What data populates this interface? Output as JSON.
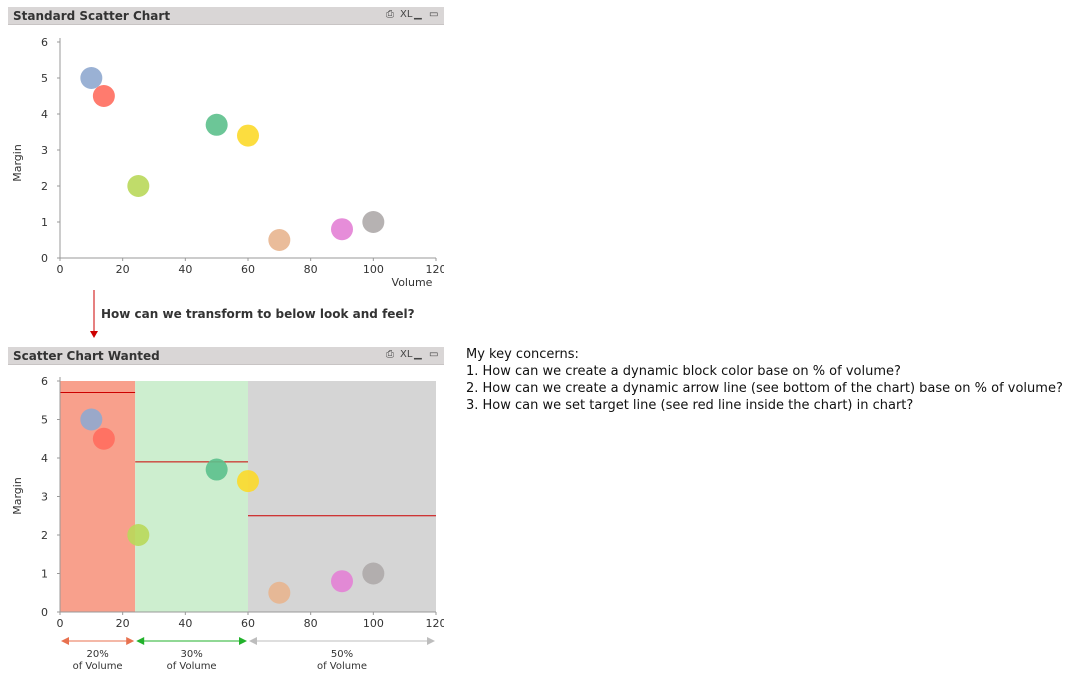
{
  "panels": [
    {
      "title": "Standard Scatter Chart",
      "controls": {
        "print": "⎙",
        "xl": "XL",
        "min": "▁",
        "max": "▭"
      }
    },
    {
      "title": "Scatter Chart Wanted",
      "controls": {
        "print": "⎙",
        "xl": "XL",
        "min": "▁",
        "max": "▭"
      }
    }
  ],
  "question": "How can we transform to below look and feel?",
  "notes": [
    "My key concerns:",
    "1. How can we create a dynamic block color base on % of volume?",
    "2. How can we create a dynamic arrow line (see bottom of the chart) base on % of volume?",
    "3. How can we set target line (see red line inside the chart) in chart?"
  ],
  "chart_data": [
    {
      "type": "scatter",
      "title": "Standard Scatter Chart",
      "xlabel": "Volume",
      "ylabel": "Margin",
      "xlim": [
        0,
        120
      ],
      "ylim": [
        0,
        6
      ],
      "xticks": [
        "0",
        "20",
        "40",
        "60",
        "80",
        "100",
        "120"
      ],
      "yticks": [
        "0",
        "1",
        "2",
        "3",
        "4",
        "5",
        "6"
      ],
      "grid": false,
      "points": [
        {
          "x": 10,
          "y": 5.0,
          "color": "#8fa9cf"
        },
        {
          "x": 14,
          "y": 4.5,
          "color": "#ff6d5e"
        },
        {
          "x": 25,
          "y": 2.0,
          "color": "#b9d85a"
        },
        {
          "x": 50,
          "y": 3.7,
          "color": "#5cc08c"
        },
        {
          "x": 60,
          "y": 3.4,
          "color": "#fcd92a"
        },
        {
          "x": 70,
          "y": 0.5,
          "color": "#e8b58f"
        },
        {
          "x": 90,
          "y": 0.8,
          "color": "#e381d5"
        },
        {
          "x": 100,
          "y": 1.0,
          "color": "#aeaaaa"
        }
      ]
    },
    {
      "type": "scatter",
      "title": "Scatter Chart Wanted",
      "xlabel": "",
      "ylabel": "Margin",
      "xlim": [
        0,
        120
      ],
      "ylim": [
        0,
        6
      ],
      "xticks": [
        "0",
        "20",
        "40",
        "60",
        "80",
        "100",
        "120"
      ],
      "yticks": [
        "0",
        "1",
        "2",
        "3",
        "4",
        "5",
        "6"
      ],
      "grid": false,
      "bands": [
        {
          "x0": 0,
          "x1": 24,
          "color": "#f8a08c",
          "target": 5.7,
          "pct": "20%",
          "label": "of Volume",
          "arrow_color": "#e8714f"
        },
        {
          "x0": 24,
          "x1": 60,
          "color": "#cdeecf",
          "target": 3.9,
          "pct": "30%",
          "label": "of Volume",
          "arrow_color": "#22b22b"
        },
        {
          "x0": 60,
          "x1": 120,
          "color": "#d5d5d5",
          "target": 2.5,
          "pct": "50%",
          "label": "of Volume",
          "arrow_color": "#bdbdbd"
        }
      ],
      "target_color": "#cc0000",
      "points": [
        {
          "x": 10,
          "y": 5.0,
          "color": "#8fa9cf"
        },
        {
          "x": 14,
          "y": 4.5,
          "color": "#ff6d5e"
        },
        {
          "x": 25,
          "y": 2.0,
          "color": "#b9d85a"
        },
        {
          "x": 50,
          "y": 3.7,
          "color": "#5cc08c"
        },
        {
          "x": 60,
          "y": 3.4,
          "color": "#fcd92a"
        },
        {
          "x": 70,
          "y": 0.5,
          "color": "#e8b58f"
        },
        {
          "x": 90,
          "y": 0.8,
          "color": "#e381d5"
        },
        {
          "x": 100,
          "y": 1.0,
          "color": "#aeaaaa"
        }
      ]
    }
  ]
}
